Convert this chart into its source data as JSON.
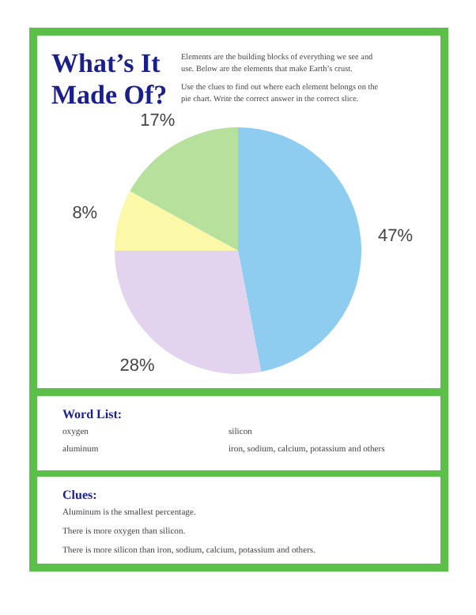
{
  "chart_data": {
    "type": "pie",
    "title": "What’s It Made Of?",
    "categories": [
      null,
      null,
      null,
      null
    ],
    "values": [
      47,
      28,
      8,
      17
    ],
    "colors": [
      "#8ecdf0",
      "#e2d3ef",
      "#fbf8a8",
      "#b6e09c"
    ],
    "value_labels": [
      "47%",
      "28%",
      "8%",
      "17%"
    ],
    "annotations": [
      "Elements are the building blocks of everything we see and use. Below are the elements that make Earth’s crust.",
      "Use the clues to find out where each element belongs on the pie chart. Write the correct answer in the correct slice.",
      "Word List:",
      "oxygen",
      "silicon",
      "aluminum",
      "iron, sodium, calcium, potassium and others",
      "Clues:",
      "Aluminum is the smallest percentage.",
      "There is more oxygen than silicon.",
      "There is more silicon than iron, sodium, calcium, potassium and others."
    ]
  }
}
